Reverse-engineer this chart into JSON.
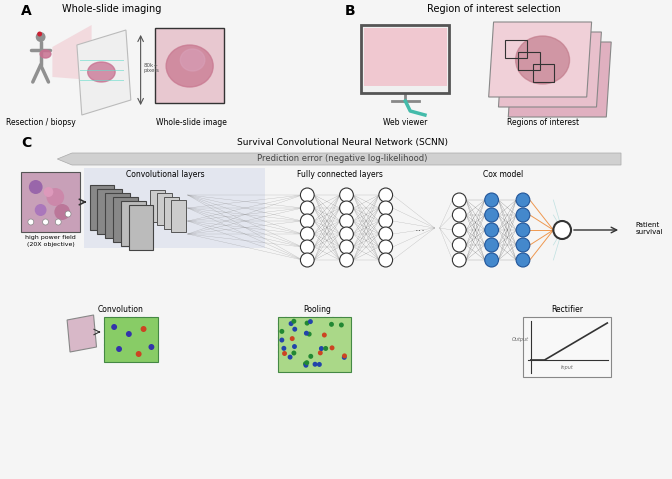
{
  "background_color": "#f5f5f5",
  "panel_A_label": "A",
  "panel_A_title": "Whole-slide imaging",
  "panel_A_label1": "Resection / biopsy",
  "panel_A_label2": "Whole-slide image",
  "panel_B_label": "B",
  "panel_B_title": "Region of interest selection",
  "panel_B_label1": "Web viewer",
  "panel_B_label2": "Regions of interest",
  "panel_C_label": "C",
  "panel_C_title": "Survival Convolutional Neural Network (SCNN)",
  "panel_C_subtitle": "Prediction error (negative log-likelihood)",
  "conv_label": "Convolutional layers",
  "fc_label": "Fully connected layers",
  "cox_label": "Cox model",
  "output_label": "Patient\nsurvival",
  "hpf_label1": "high power field",
  "hpf_label2": "(20X objective)",
  "bot_label1": "Convolution",
  "bot_label2": "Pooling",
  "bot_label3": "Rectifier",
  "person_color": "#909090",
  "tumor_pink": "#c87090",
  "slide_color": "#e8e8f0",
  "light_pink": "#f0d8e0",
  "med_pink": "#d8a0b0",
  "dark_pink": "#b07888",
  "monitor_color": "#dddddd",
  "screen_bg": "#f0c8d0",
  "cancer_color": "#cc3366",
  "cable_color": "#44bbaa",
  "conv_bg": "#c8d0e8",
  "fc_node_color": "#ffffff",
  "fc_node_edge": "#333333",
  "blue_node": "#4488cc",
  "orange_color": "#ee8833",
  "arrow_bg": "#cccccc",
  "gray_box": "#888888",
  "light_gray": "#cccccc",
  "green_bg": "#88cc66",
  "green_grid": "#448844",
  "pooling_bg": "#aad888",
  "hpf_bg": "#c8a0b8",
  "rect_plot_bg": "#f8f8f8"
}
